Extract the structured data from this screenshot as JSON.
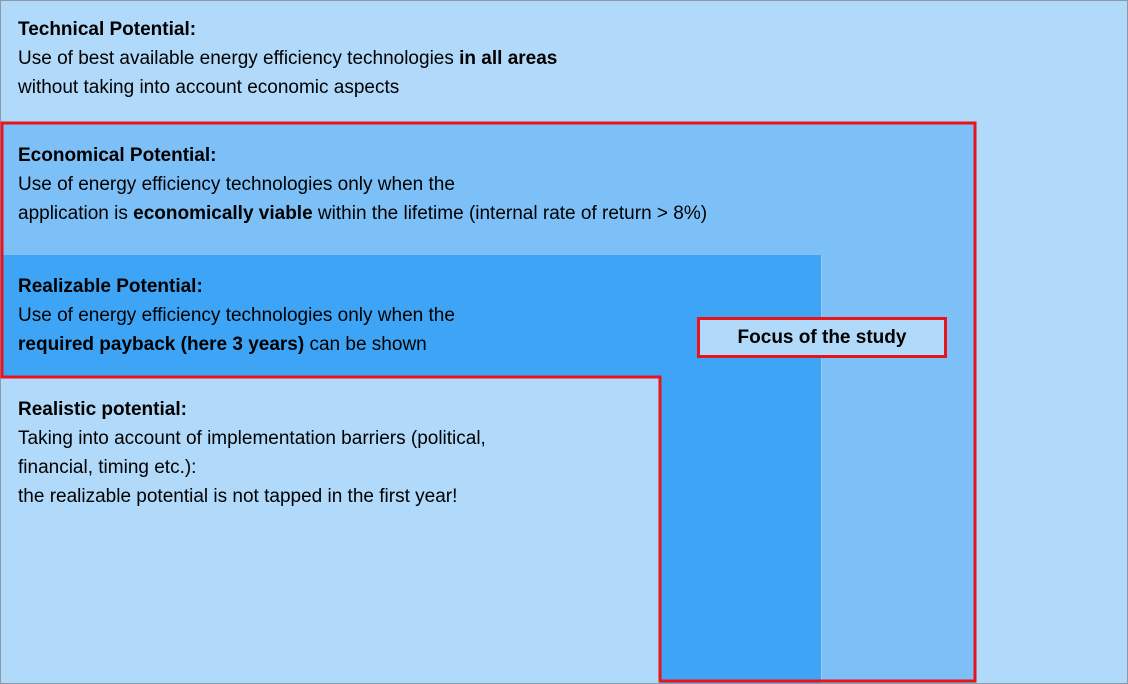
{
  "sections": [
    {
      "title": "Technical Potential:",
      "lines": [
        [
          {
            "text": "Use of best available energy efficiency technologies ",
            "bold": false
          },
          {
            "text": "in all areas",
            "bold": true
          }
        ],
        [
          {
            "text": "without taking into account economic aspects",
            "bold": false
          }
        ]
      ]
    },
    {
      "title": "Economical Potential:",
      "lines": [
        [
          {
            "text": "Use of energy efficiency technologies only when the",
            "bold": false
          }
        ],
        [
          {
            "text": "application is ",
            "bold": false
          },
          {
            "text": "economically viable",
            "bold": true
          },
          {
            "text": " within the lifetime (internal rate of return > 8%)",
            "bold": false
          }
        ]
      ]
    },
    {
      "title": "Realizable Potential:",
      "lines": [
        [
          {
            "text": "Use of energy efficiency technologies only when the",
            "bold": false
          }
        ],
        [
          {
            "text": "required payback (here 3 years)",
            "bold": true
          },
          {
            "text": " can be shown",
            "bold": false
          }
        ]
      ]
    },
    {
      "title": "Realistic potential:",
      "lines": [
        [
          {
            "text": "Taking into account of implementation barriers (political,",
            "bold": false
          }
        ],
        [
          {
            "text": "financial, timing etc.):",
            "bold": false
          }
        ],
        [
          {
            "text": "the realizable potential is not tapped in the first year!",
            "bold": false
          }
        ]
      ]
    }
  ],
  "focus": {
    "label": "Focus of the study"
  }
}
